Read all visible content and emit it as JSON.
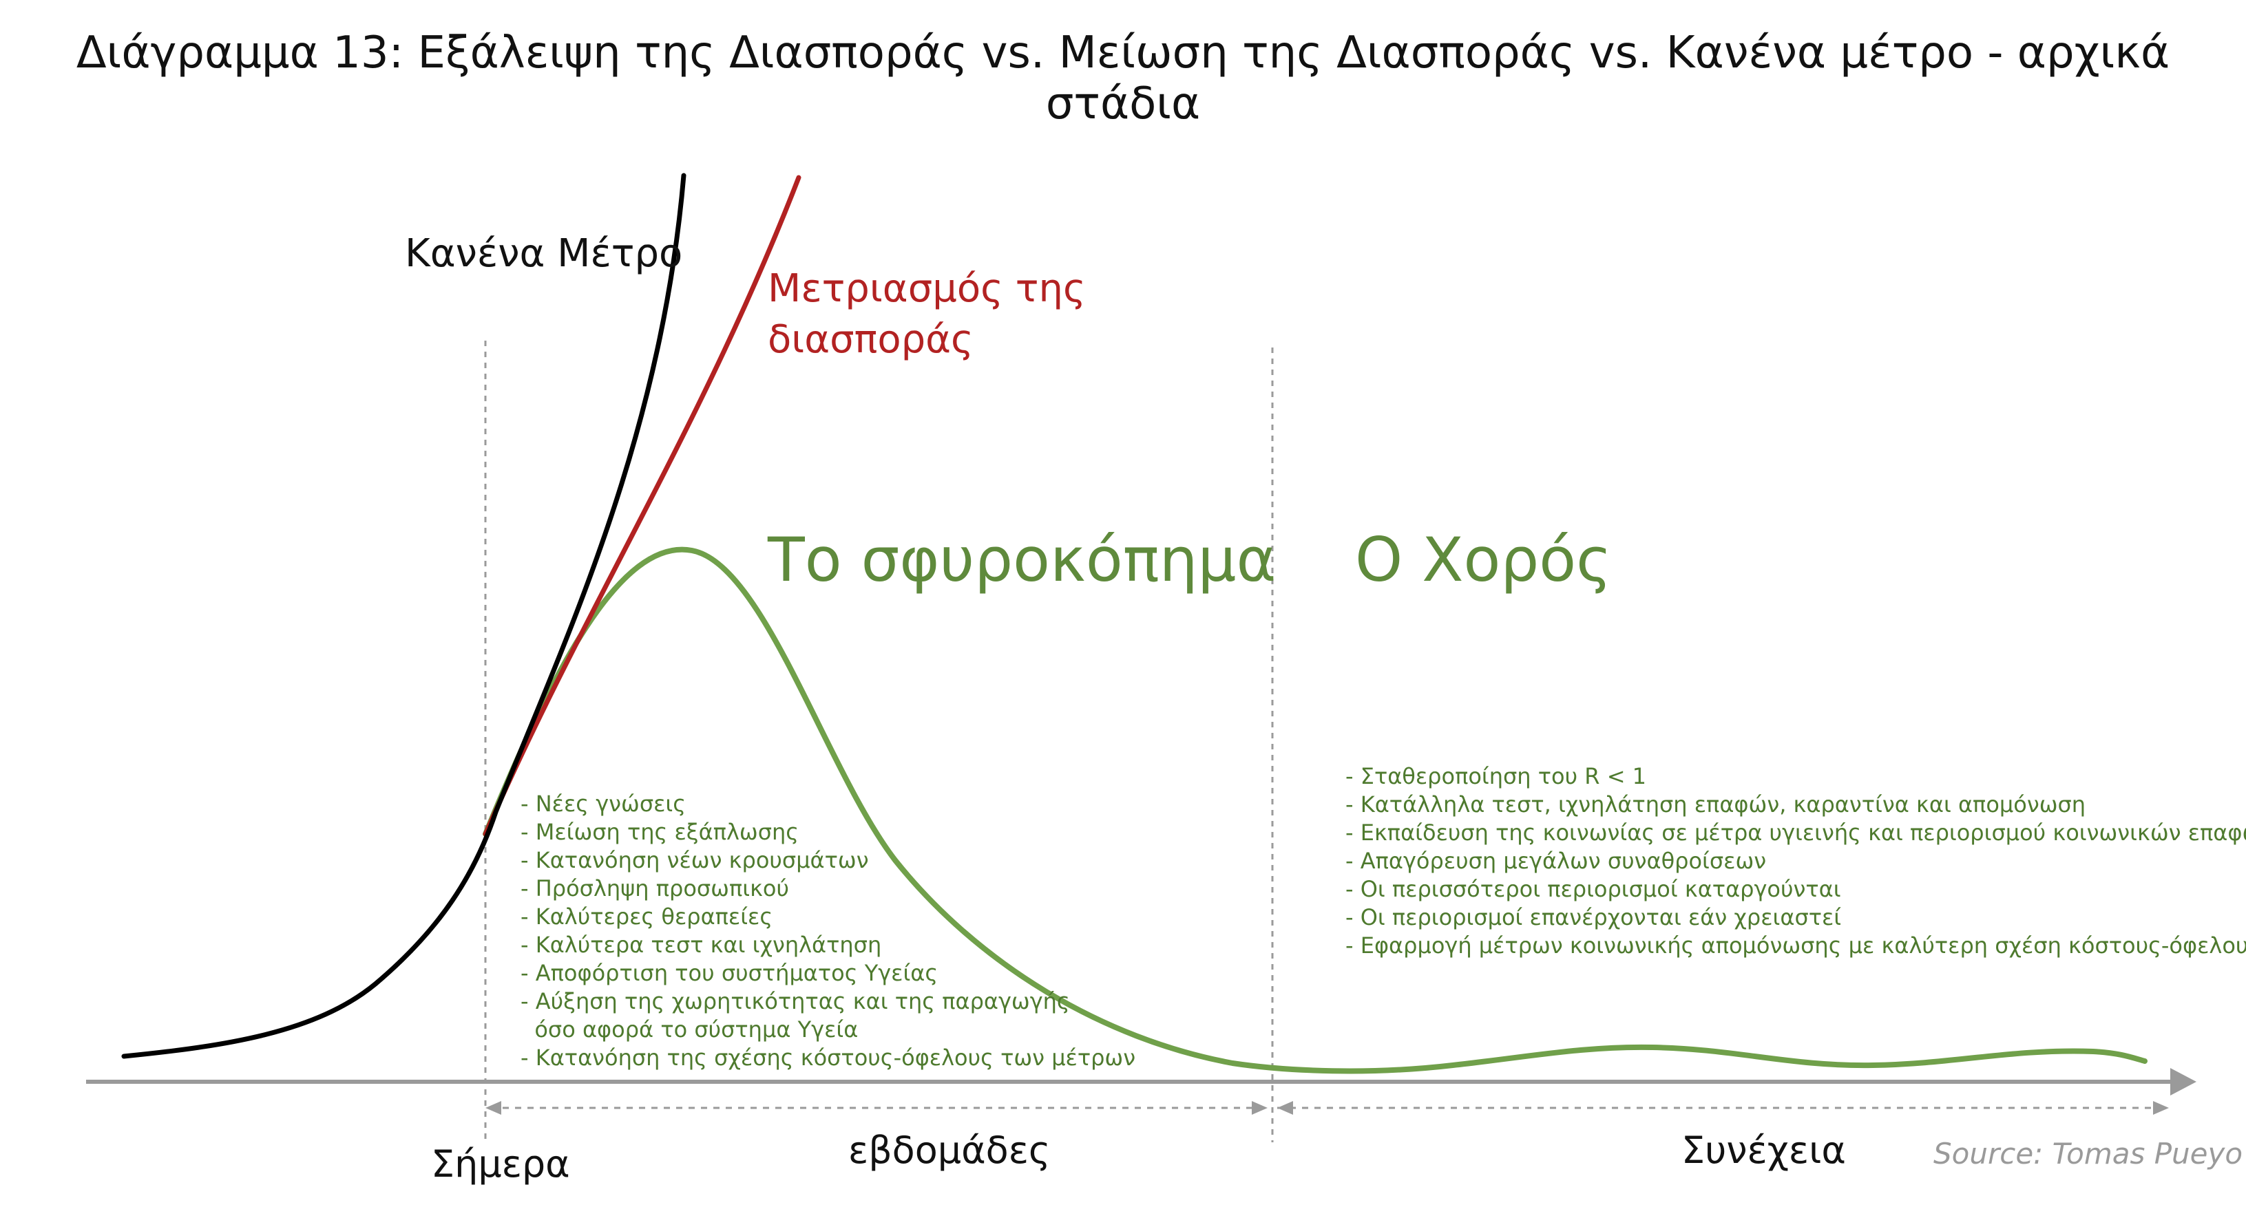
{
  "title": "Διάγραμμα 13: Εξάλειψη της Διασποράς vs. Μείωση της Διασποράς vs. Κανένα μέτρο - αρχικά στάδια",
  "curves": {
    "none_label": "Κανένα Μέτρο",
    "mitigation_label_line1": "Μετριασμός της",
    "mitigation_label_line2": "διασποράς",
    "colors": {
      "none": "#000000",
      "mitigation": "#b22222",
      "suppression": "#70a04a"
    }
  },
  "phases": {
    "hammer": "Το σφυροκόπημα",
    "dance": "Ο Χορός"
  },
  "hammer_items": [
    "- Νέες γνώσεις",
    "- Μείωση της εξάπλωσης",
    "- Κατανόηση νέων κρουσμάτων",
    "- Πρόσληψη προσωπικού",
    "- Καλύτερες θεραπείες",
    "- Καλύτερα τεστ και ιχνηλάτηση",
    "- Αποφόρτιση του συστήματος Υγείας",
    "- Αύξηση της χωρητικότητας και της παραγωγής",
    "  όσο αφορά το σύστημα Υγεία",
    "- Κατανόηση της σχέσης κόστους-όφελους των μέτρων"
  ],
  "dance_items": [
    "- Σταθεροποίηση του R < 1",
    "- Κατάλληλα τεστ, ιχνηλάτηση επαφών, καραντίνα και απομόνωση",
    "- Εκπαίδευση της κοινωνίας σε μέτρα υγιεινής και περιορισμού κοινωνικών επαφών",
    "- Απαγόρευση μεγάλων συναθροίσεων",
    "- Οι περισσότεροι περιορισμοί καταργούνται",
    "- Οι περιορισμοί επανέρχονται εάν χρειαστεί",
    "- Εφαρμογή μέτρων κοινωνικής απομόνωσης με καλύτερη σχέση κόστους-όφελους"
  ],
  "axis": {
    "today": "Σήμερα",
    "weeks": "εβδομάδες",
    "continuation": "Συνέχεια"
  },
  "source": "Source: Tomas Pueyo"
}
